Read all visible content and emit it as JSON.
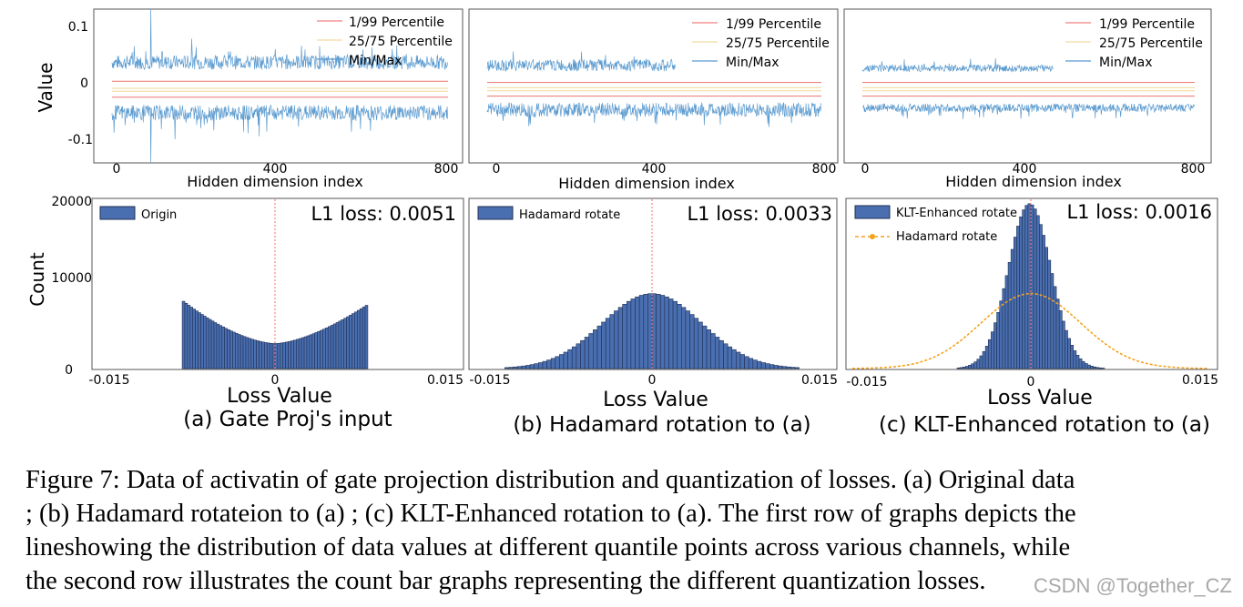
{
  "colors": {
    "minmax": "#5b9bd0",
    "p1_99": "#f08080",
    "p25_75": "#f3dba0",
    "bar_fill": "#4a6fb0",
    "bar_edge": "#1f2f55",
    "center_line": "#ff6b6b",
    "hadamard_curve": "#f5a21b"
  },
  "row1_ylabel": "Value",
  "row1_xlabel": "Hidden dimension index",
  "row2_ylabel": "Count",
  "row2_xlabel": "Loss Value",
  "chart_data": [
    {
      "type": "line",
      "id": "a_top",
      "xlabel": "Hidden dimension index",
      "ylabel": "Value",
      "xlim": [
        0,
        800
      ],
      "ylim": [
        -0.13,
        0.13
      ],
      "xticks": [
        "0",
        "400",
        "800"
      ],
      "yticks": [
        "0.1",
        "0",
        "-0.1"
      ],
      "legend": [
        "1/99 Percentile",
        "25/75 Percentile",
        "Min/Max"
      ],
      "series": [
        {
          "name": "Min/Max (upper)",
          "mean": 0.04,
          "amp": 0.012,
          "spikes": [
            [
              92,
              0.13
            ],
            [
              190,
              0.08
            ],
            [
              440,
              0.05
            ]
          ],
          "x_range": [
            0,
            800
          ]
        },
        {
          "name": "Min/Max (lower)",
          "mean": -0.045,
          "amp": 0.013,
          "spikes": [
            [
              92,
              -0.13
            ],
            [
              150,
              -0.09
            ],
            [
              350,
              -0.085
            ]
          ],
          "x_range": [
            0,
            800
          ]
        },
        {
          "name": "1/99 Percentile (upper)",
          "value": 0.008
        },
        {
          "name": "1/99 Percentile (lower)",
          "value": -0.019
        },
        {
          "name": "25/75 Percentile (upper)",
          "value": -0.004
        },
        {
          "name": "25/75 Percentile (lower)",
          "value": -0.009
        }
      ]
    },
    {
      "type": "line",
      "id": "b_top",
      "xlabel": "Hidden dimension index",
      "xlim": [
        0,
        800
      ],
      "ylim": [
        -0.13,
        0.13
      ],
      "xticks": [
        "0",
        "400",
        "800"
      ],
      "legend": [
        "1/99 Percentile",
        "25/75 Percentile",
        "Min/Max"
      ],
      "series": [
        {
          "name": "Min/Max (upper)",
          "mean": 0.035,
          "amp": 0.01,
          "x_range": [
            0,
            450
          ]
        },
        {
          "name": "Min/Max (lower)",
          "mean": -0.04,
          "amp": 0.012,
          "x_range": [
            0,
            800
          ]
        },
        {
          "name": "1/99 Percentile (upper)",
          "value": 0.006
        },
        {
          "name": "1/99 Percentile (lower)",
          "value": -0.017
        },
        {
          "name": "25/75 Percentile (upper)",
          "value": -0.003
        },
        {
          "name": "25/75 Percentile (lower)",
          "value": -0.008
        }
      ]
    },
    {
      "type": "line",
      "id": "c_top",
      "xlabel": "Hidden dimension index",
      "xlim": [
        0,
        800
      ],
      "ylim": [
        -0.13,
        0.13
      ],
      "xticks": [
        "0",
        "400",
        "800"
      ],
      "legend": [
        "1/99 Percentile",
        "25/75 Percentile",
        "Min/Max"
      ],
      "series": [
        {
          "name": "Min/Max (upper)",
          "mean": 0.03,
          "amp": 0.006,
          "x_range": [
            0,
            460
          ]
        },
        {
          "name": "Min/Max (lower)",
          "mean": -0.037,
          "amp": 0.007,
          "x_range": [
            0,
            800
          ]
        },
        {
          "name": "1/99 Percentile (upper)",
          "value": 0.006
        },
        {
          "name": "1/99 Percentile (lower)",
          "value": -0.017
        },
        {
          "name": "25/75 Percentile (upper)",
          "value": -0.003
        },
        {
          "name": "25/75 Percentile (lower)",
          "value": -0.008
        }
      ]
    },
    {
      "type": "bar",
      "id": "a_bottom",
      "xlabel": "Loss Value",
      "ylabel": "Count",
      "xlim": [
        -0.015,
        0.015
      ],
      "ylim": [
        0,
        20000
      ],
      "xticks": [
        "-0.015",
        "0",
        "0.015"
      ],
      "yticks": [
        "20000",
        "10000",
        "0"
      ],
      "legend": [
        "Origin"
      ],
      "annotation": "L1 loss: 0.0051",
      "subtitle": "(a) Gate Proj's input",
      "distribution": {
        "shape": "bimodal",
        "x_range": [
          -0.0078,
          0.0078
        ],
        "edge_count": 8200,
        "right_edge_count": 7700,
        "center_count": 3000
      }
    },
    {
      "type": "bar",
      "id": "b_bottom",
      "xlabel": "Loss Value",
      "xlim": [
        -0.015,
        0.015
      ],
      "ylim": [
        0,
        20000
      ],
      "xticks": [
        "-0.015",
        "0",
        "0.015"
      ],
      "legend": [
        "Hadamard rotate"
      ],
      "annotation": "L1 loss: 0.0033",
      "subtitle": "(b) Hadamard rotation to (a)",
      "distribution": {
        "shape": "gaussian",
        "mean": 0,
        "sigma": 0.0042,
        "peak": 9000,
        "x_range": [
          -0.0125,
          0.0125
        ]
      }
    },
    {
      "type": "bar",
      "id": "c_bottom",
      "xlabel": "Loss Value",
      "xlim": [
        -0.015,
        0.015
      ],
      "ylim": [
        0,
        20000
      ],
      "xticks": [
        "-0.015",
        "0",
        "0.015"
      ],
      "legend": [
        "KLT-Enhanced rotate",
        "Hadamard rotate"
      ],
      "annotation": "L1 loss: 0.0016",
      "subtitle": "(c) KLT-Enhanced rotation to (a)",
      "distribution": {
        "shape": "gaussian",
        "mean": -0.0001,
        "sigma": 0.0018,
        "peak": 19800,
        "x_range": [
          -0.0062,
          0.0062
        ]
      },
      "overlay_curve": {
        "name": "Hadamard rotate",
        "mean": 0,
        "sigma": 0.0042,
        "peak": 9000
      }
    }
  ],
  "caption": {
    "lines": [
      "Figure 7: Data of activatin of gate projection distribution and quantization of losses. (a) Original data",
      "; (b) Hadamard rotateion to (a) ; (c) KLT-Enhanced rotation to (a). The first row of graphs depicts the",
      "lineshowing the distribution of data values at different quantile points across various channels, while",
      "the second row illustrates the count bar graphs representing the different quantization losses."
    ]
  },
  "watermark": "CSDN @Together_CZ"
}
